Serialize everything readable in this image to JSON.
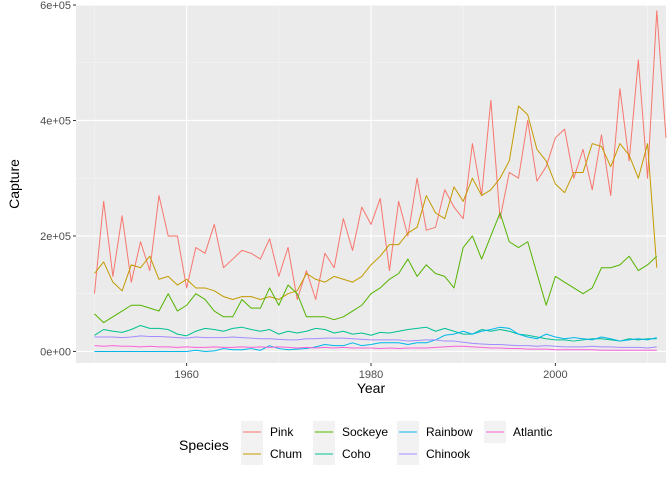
{
  "chart_data": {
    "type": "line",
    "xlabel": "Year",
    "ylabel": "Capture",
    "xlim": [
      1948,
      2012
    ],
    "ylim": [
      -20000,
      600000
    ],
    "x_ticks": [
      1960,
      1980,
      2000
    ],
    "y_ticks": [
      0,
      200000,
      400000,
      600000
    ],
    "x_tick_labels": [
      "1960",
      "1980",
      "2000"
    ],
    "y_tick_labels": [
      "0e+00",
      "2e+05",
      "4e+05",
      "6e+05"
    ],
    "grid": true,
    "legend": {
      "title": "Species",
      "position": "bottom"
    },
    "start_year": 1950,
    "series": [
      {
        "name": "Pink",
        "color": "#F8766D",
        "values": [
          100000,
          260000,
          130000,
          235000,
          120000,
          190000,
          140000,
          270000,
          200000,
          200000,
          110000,
          180000,
          170000,
          220000,
          145000,
          160000,
          175000,
          170000,
          160000,
          195000,
          130000,
          180000,
          90000,
          140000,
          90000,
          170000,
          145000,
          230000,
          175000,
          250000,
          220000,
          265000,
          140000,
          260000,
          200000,
          300000,
          210000,
          215000,
          280000,
          250000,
          230000,
          360000,
          270000,
          435000,
          230000,
          310000,
          300000,
          400000,
          295000,
          320000,
          370000,
          385000,
          300000,
          350000,
          280000,
          375000,
          270000,
          455000,
          330000,
          505000,
          300000,
          590000,
          370000
        ]
      },
      {
        "name": "Chum",
        "color": "#C49A00",
        "values": [
          135000,
          155000,
          120000,
          105000,
          150000,
          145000,
          165000,
          125000,
          130000,
          115000,
          125000,
          110000,
          110000,
          105000,
          95000,
          90000,
          95000,
          95000,
          90000,
          95000,
          90000,
          100000,
          105000,
          135000,
          125000,
          120000,
          130000,
          125000,
          120000,
          130000,
          150000,
          165000,
          185000,
          185000,
          205000,
          215000,
          270000,
          240000,
          230000,
          285000,
          260000,
          300000,
          270000,
          280000,
          300000,
          330000,
          425000,
          410000,
          350000,
          330000,
          290000,
          275000,
          310000,
          310000,
          360000,
          355000,
          320000,
          360000,
          340000,
          300000,
          360000,
          145000
        ]
      },
      {
        "name": "Sockeye",
        "color": "#53B400",
        "values": [
          65000,
          50000,
          60000,
          70000,
          80000,
          80000,
          75000,
          70000,
          100000,
          70000,
          80000,
          100000,
          90000,
          70000,
          60000,
          60000,
          90000,
          75000,
          75000,
          110000,
          80000,
          115000,
          100000,
          60000,
          60000,
          60000,
          55000,
          60000,
          70000,
          80000,
          100000,
          110000,
          125000,
          135000,
          160000,
          130000,
          150000,
          135000,
          130000,
          110000,
          180000,
          200000,
          160000,
          200000,
          240000,
          190000,
          180000,
          190000,
          135000,
          80000,
          130000,
          120000,
          110000,
          100000,
          110000,
          145000,
          145000,
          150000,
          165000,
          140000,
          150000,
          165000
        ]
      },
      {
        "name": "Coho",
        "color": "#00C094",
        "values": [
          28000,
          38000,
          35000,
          33000,
          38000,
          45000,
          40000,
          40000,
          38000,
          30000,
          27000,
          35000,
          40000,
          38000,
          35000,
          40000,
          42000,
          38000,
          35000,
          38000,
          30000,
          35000,
          32000,
          35000,
          40000,
          38000,
          32000,
          35000,
          30000,
          32000,
          28000,
          33000,
          32000,
          35000,
          38000,
          40000,
          42000,
          35000,
          40000,
          35000,
          30000,
          30000,
          38000,
          35000,
          38000,
          35000,
          30000,
          28000,
          25000,
          22000,
          20000,
          20000,
          18000,
          20000,
          22000,
          22000,
          20000,
          18000,
          22000,
          20000,
          22000,
          22000
        ]
      },
      {
        "name": "Rainbow",
        "color": "#00B6EB",
        "values": [
          0,
          0,
          0,
          0,
          0,
          0,
          0,
          0,
          0,
          0,
          0,
          2000,
          0,
          1000,
          5000,
          3000,
          3000,
          5000,
          2000,
          10000,
          5000,
          3000,
          4000,
          5000,
          8000,
          12000,
          10000,
          10000,
          15000,
          10000,
          12000,
          15000,
          15000,
          15000,
          12000,
          15000,
          15000,
          20000,
          28000,
          30000,
          35000,
          30000,
          35000,
          38000,
          42000,
          40000,
          30000,
          25000,
          22000,
          30000,
          25000,
          22000,
          24000,
          22000,
          20000,
          25000,
          22000,
          18000,
          20000,
          22000,
          20000,
          24000
        ]
      },
      {
        "name": "Chinook",
        "color": "#A58AFF",
        "values": [
          25000,
          25000,
          25000,
          24000,
          25000,
          27000,
          26000,
          26000,
          25000,
          24000,
          23000,
          25000,
          24000,
          24000,
          24000,
          25000,
          24000,
          23000,
          22000,
          22000,
          21000,
          20000,
          20000,
          22000,
          22000,
          23000,
          23000,
          23000,
          22000,
          21000,
          20000,
          20000,
          20000,
          20000,
          18000,
          19000,
          20000,
          20000,
          18000,
          18000,
          16000,
          14000,
          13000,
          12000,
          12000,
          11000,
          10000,
          10000,
          9000,
          10000,
          9000,
          8000,
          8000,
          8000,
          9000,
          8000,
          8000,
          7000,
          7000,
          7000,
          6000,
          8000
        ]
      },
      {
        "name": "Atlantic",
        "color": "#FB61D7",
        "values": [
          10000,
          9000,
          10000,
          9000,
          9000,
          8000,
          9000,
          8000,
          8000,
          7000,
          8000,
          7000,
          7000,
          8000,
          7000,
          7000,
          8000,
          7000,
          8000,
          7000,
          8000,
          7000,
          6000,
          7000,
          6000,
          7000,
          6000,
          7000,
          6000,
          6000,
          6000,
          5000,
          6000,
          5000,
          6000,
          6000,
          6000,
          7000,
          8000,
          9000,
          9000,
          8000,
          7000,
          6000,
          6000,
          5000,
          5000,
          4000,
          4000,
          4000,
          3000,
          3000,
          3000,
          3000,
          3000,
          2000,
          2000,
          2000,
          2000,
          2000,
          2000,
          2000
        ]
      }
    ]
  }
}
